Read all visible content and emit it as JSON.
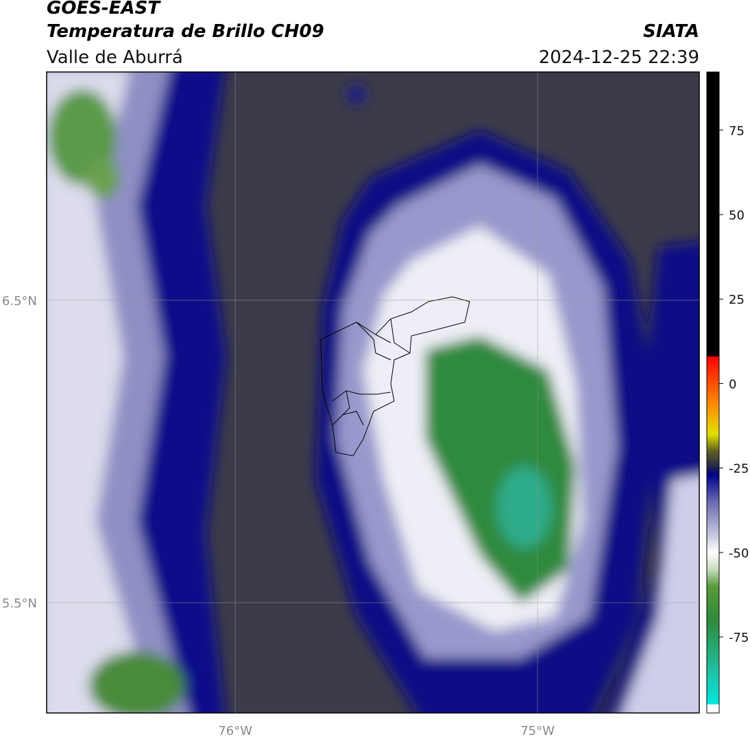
{
  "header": {
    "title": "GOES-EAST",
    "subtitle": "Temperatura de Brillo CH09",
    "region": "Valle de Aburrá",
    "source": "SIATA",
    "timestamp": "2024-12-25 22:39"
  },
  "map": {
    "lonlim": [
      -76.624,
      -74.465
    ],
    "latlim": [
      5.135,
      7.255
    ],
    "lonticks": [
      {
        "value": -76,
        "label": "76°W"
      },
      {
        "value": -75,
        "label": "75°W"
      }
    ],
    "latticks": [
      {
        "value": 6.5,
        "label": "6.5°N"
      },
      {
        "value": 5.5,
        "label": "5.5°N"
      }
    ],
    "grid": true
  },
  "colorbar": {
    "lim": [
      -97.5,
      92.2
    ],
    "ticks": [
      75,
      50,
      25,
      0,
      -25,
      -50,
      -75
    ],
    "stops": [
      [
        -97.5,
        "#ffffff"
      ],
      [
        -95,
        "#ffffff"
      ],
      [
        -95,
        "#00e8e0"
      ],
      [
        -85,
        "#20c0a0"
      ],
      [
        -70,
        "#2e8b3a"
      ],
      [
        -60,
        "#5a9a3a"
      ],
      [
        -55,
        "#c8dcc0"
      ],
      [
        -50,
        "#ffffff"
      ],
      [
        -45,
        "#c8c8e0"
      ],
      [
        -35,
        "#6a6ab0"
      ],
      [
        -27,
        "#00008b"
      ],
      [
        -25,
        "#202050"
      ],
      [
        -20,
        "#606020"
      ],
      [
        -15,
        "#e0e000"
      ],
      [
        -5,
        "#ff8000"
      ],
      [
        5,
        "#ff2000"
      ],
      [
        8,
        "#ff0000"
      ],
      [
        8,
        "#000000"
      ],
      [
        92.2,
        "#000000"
      ]
    ]
  }
}
